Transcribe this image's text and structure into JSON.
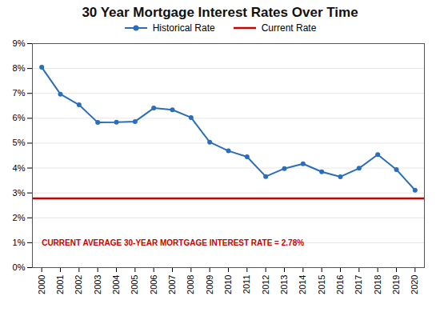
{
  "chart_data": {
    "type": "line",
    "title": "30 Year Mortgage Interest Rates Over Time",
    "x": [
      2000,
      2001,
      2002,
      2003,
      2004,
      2005,
      2006,
      2007,
      2008,
      2009,
      2010,
      2011,
      2012,
      2013,
      2014,
      2015,
      2016,
      2017,
      2018,
      2019,
      2020
    ],
    "series": [
      {
        "name": "Historical Rate",
        "color": "#2a6ebb",
        "marker": "circle",
        "line_style": "solid",
        "values": [
          8.05,
          6.97,
          6.54,
          5.83,
          5.84,
          5.87,
          6.41,
          6.34,
          6.03,
          5.04,
          4.69,
          4.45,
          3.66,
          3.98,
          4.17,
          3.85,
          3.65,
          3.99,
          4.54,
          3.94,
          3.11
        ]
      },
      {
        "name": "Current Rate",
        "color": "#cc0000",
        "type": "hline",
        "line_style": "solid",
        "value": 2.78
      }
    ],
    "annotations": [
      {
        "text": "CURRENT AVERAGE 30-YEAR MORTGAGE INTEREST RATE = 2.78%",
        "x": 2000,
        "y": 1.0,
        "color": "#cc0000"
      }
    ],
    "xlim": [
      1999.5,
      2020.5
    ],
    "xticks": [
      2000,
      2001,
      2002,
      2003,
      2004,
      2005,
      2006,
      2007,
      2008,
      2009,
      2010,
      2011,
      2012,
      2013,
      2014,
      2015,
      2016,
      2017,
      2018,
      2019,
      2020
    ],
    "ylim": [
      0,
      9
    ],
    "yticks": [
      {
        "value": 0,
        "label": "0%"
      },
      {
        "value": 1,
        "label": "1%"
      },
      {
        "value": 2,
        "label": "2%"
      },
      {
        "value": 3,
        "label": "3%"
      },
      {
        "value": 4,
        "label": "4%"
      },
      {
        "value": 5,
        "label": "5%"
      },
      {
        "value": 6,
        "label": "6%"
      },
      {
        "value": 7,
        "label": "7%"
      },
      {
        "value": 8,
        "label": "8%"
      },
      {
        "value": 9,
        "label": "9%"
      }
    ],
    "grid": "y",
    "legend": "top"
  }
}
